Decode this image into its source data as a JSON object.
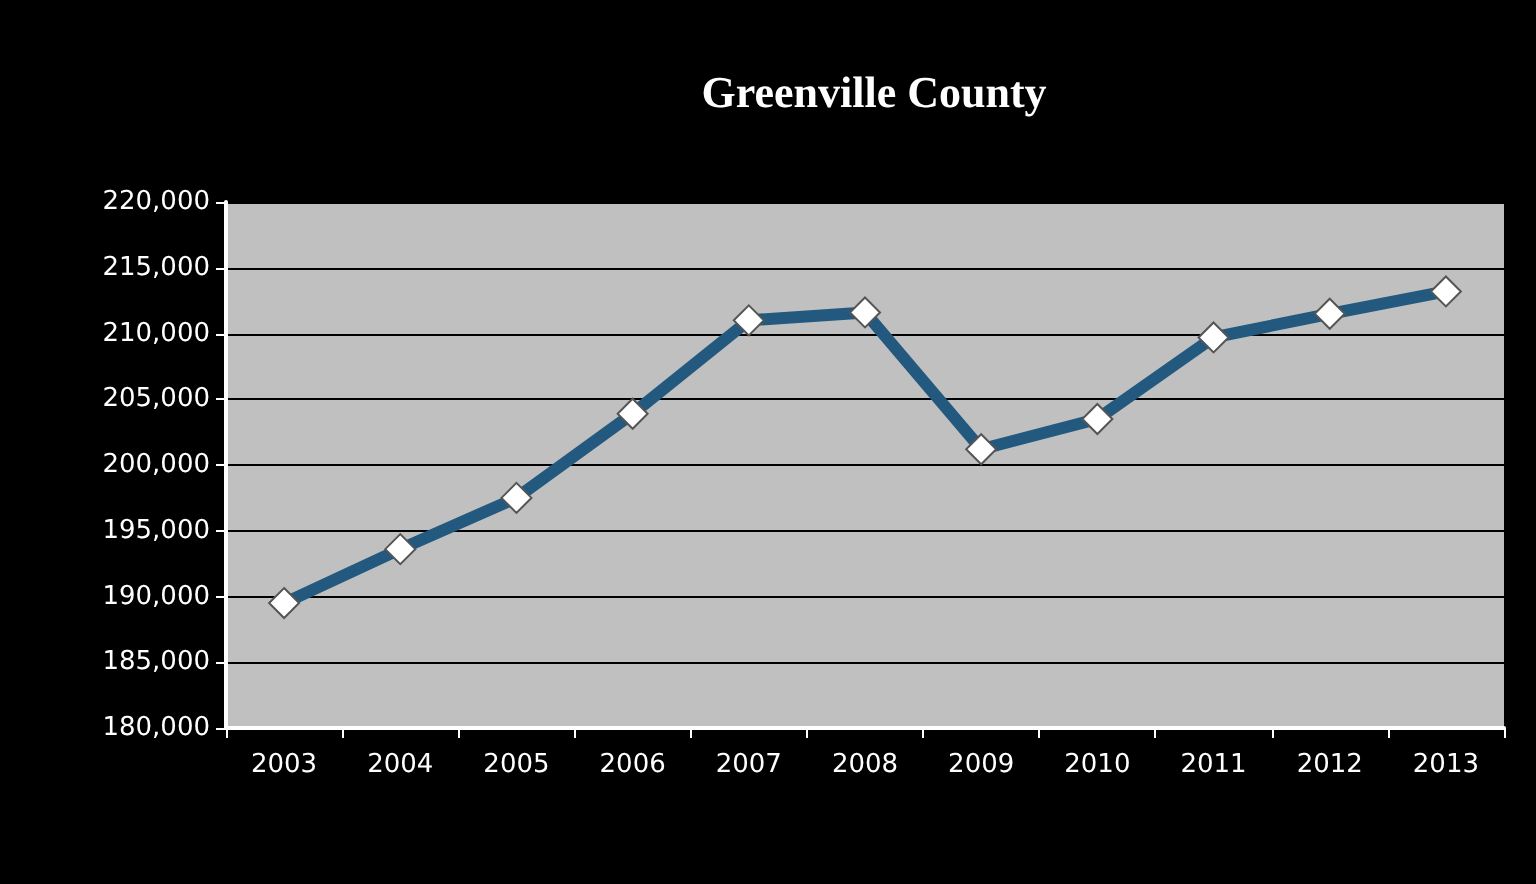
{
  "chart_data": {
    "type": "line",
    "title": "Greenville County",
    "categories": [
      "2003",
      "2004",
      "2005",
      "2006",
      "2007",
      "2008",
      "2009",
      "2010",
      "2011",
      "2012",
      "2013"
    ],
    "series": [
      {
        "color": "#23597f",
        "values": [
          189500,
          193600,
          197500,
          203900,
          211000,
          211600,
          201200,
          203500,
          209700,
          211500,
          213200
        ]
      }
    ],
    "ylim": [
      180000,
      220000
    ],
    "yticks": [
      {
        "value": 180000,
        "label": "180,000"
      },
      {
        "value": 185000,
        "label": "185,000"
      },
      {
        "value": 190000,
        "label": "190,000"
      },
      {
        "value": 195000,
        "label": "195,000"
      },
      {
        "value": 200000,
        "label": "200,000"
      },
      {
        "value": 205000,
        "label": "205,000"
      },
      {
        "value": 210000,
        "label": "210,000"
      },
      {
        "value": 215000,
        "label": "215,000"
      },
      {
        "value": 220000,
        "label": "220,000"
      }
    ],
    "grid": "y",
    "marker": "diamond"
  }
}
